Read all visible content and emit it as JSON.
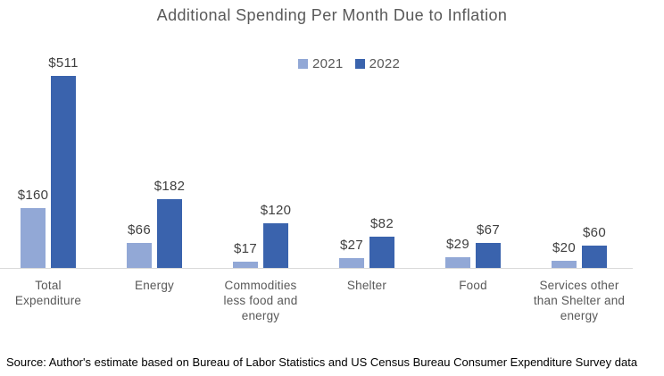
{
  "title": "Additional Spending Per Month Due to Inflation",
  "legend": {
    "items": [
      {
        "label": "2021",
        "color": "#92A8D6"
      },
      {
        "label": "2022",
        "color": "#3A63AD"
      }
    ]
  },
  "chart_data": {
    "type": "bar",
    "title": "Additional Spending Per Month Due to Inflation",
    "categories": [
      "Total Expenditure",
      "Energy",
      "Commodities less food and energy",
      "Shelter",
      "Food",
      "Services other than Shelter and energy"
    ],
    "series": [
      {
        "name": "2021",
        "color": "#92A8D6",
        "values": [
          160,
          66,
          17,
          27,
          29,
          20
        ]
      },
      {
        "name": "2022",
        "color": "#3A63AD",
        "values": [
          511,
          182,
          120,
          82,
          67,
          60
        ]
      }
    ],
    "value_prefix": "$",
    "data_labels": {
      "2021": [
        "$160",
        "$66",
        "$17",
        "$27",
        "$29",
        "$20"
      ],
      "2022": [
        "$511",
        "$182",
        "$120",
        "$82",
        "$67",
        "$60"
      ]
    },
    "xlabel": "",
    "ylabel": "",
    "ylim": [
      0,
      511
    ],
    "grid": false,
    "legend_position": "top-center",
    "axis_line_color": "#D9D9D9",
    "label_color": "#404040",
    "category_color": "#595959"
  },
  "source_note": "Source: Author's estimate based on Bureau of Labor Statistics  and US Census Bureau Consumer Expenditure Survey data"
}
